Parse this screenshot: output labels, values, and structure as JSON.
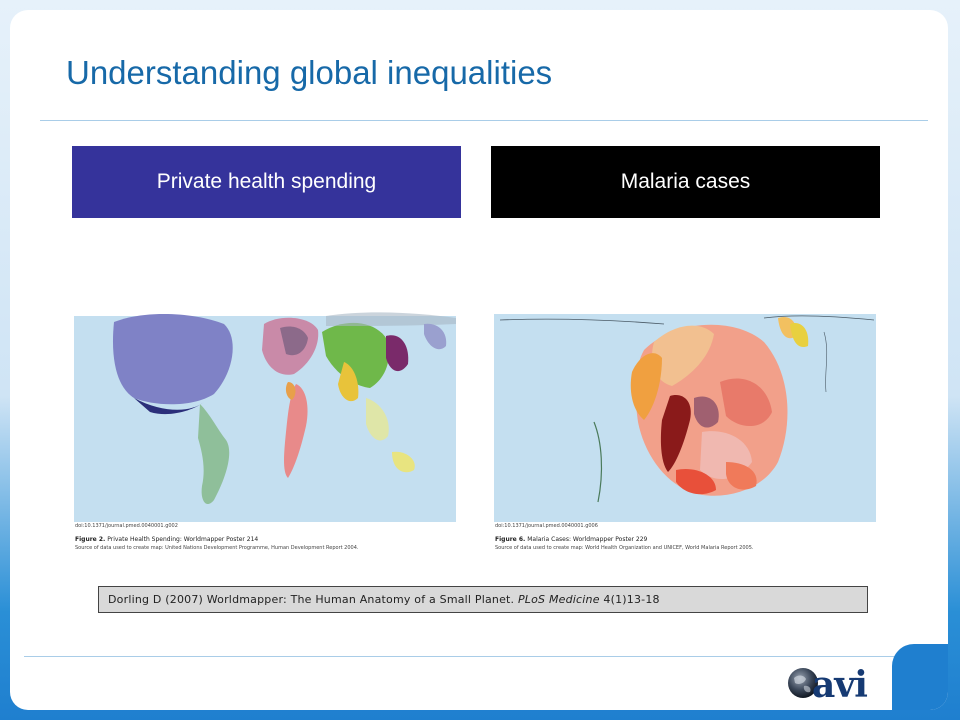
{
  "slide": {
    "title": "Understanding global inequalities"
  },
  "panels": [
    {
      "heading": "Private health spending",
      "doi": "doi:10.1371/journal.pmed.0040001.g002",
      "figure_label": "Figure 2.",
      "figure_title": "Private Health Spending: Worldmapper Poster 214",
      "source": "Source of data used to create map: United Nations Development Programme, Human Development Report 2004.",
      "colors": {
        "box": "#35339b"
      }
    },
    {
      "heading": "Malaria cases",
      "doi": "doi:10.1371/journal.pmed.0040001.g006",
      "figure_label": "Figure 6.",
      "figure_title": "Malaria Cases: Worldmapper Poster 229",
      "source": "Source of data used to create map: World Health Organization and UNICEF, World Malaria Report 2005.",
      "colors": {
        "box": "#000000"
      }
    }
  ],
  "citation": {
    "prefix": "Dorling D (2007) Worldmapper: The Human Anatomy of a Small Planet.",
    "journal": "PLoS Medicine",
    "suffix": "4(1)13-18"
  },
  "logo": {
    "text": "avi",
    "icon": "globe-icon"
  },
  "colors": {
    "title": "#1769a8",
    "ocean": "#c4dff0",
    "accent": "#1f7fcf"
  }
}
